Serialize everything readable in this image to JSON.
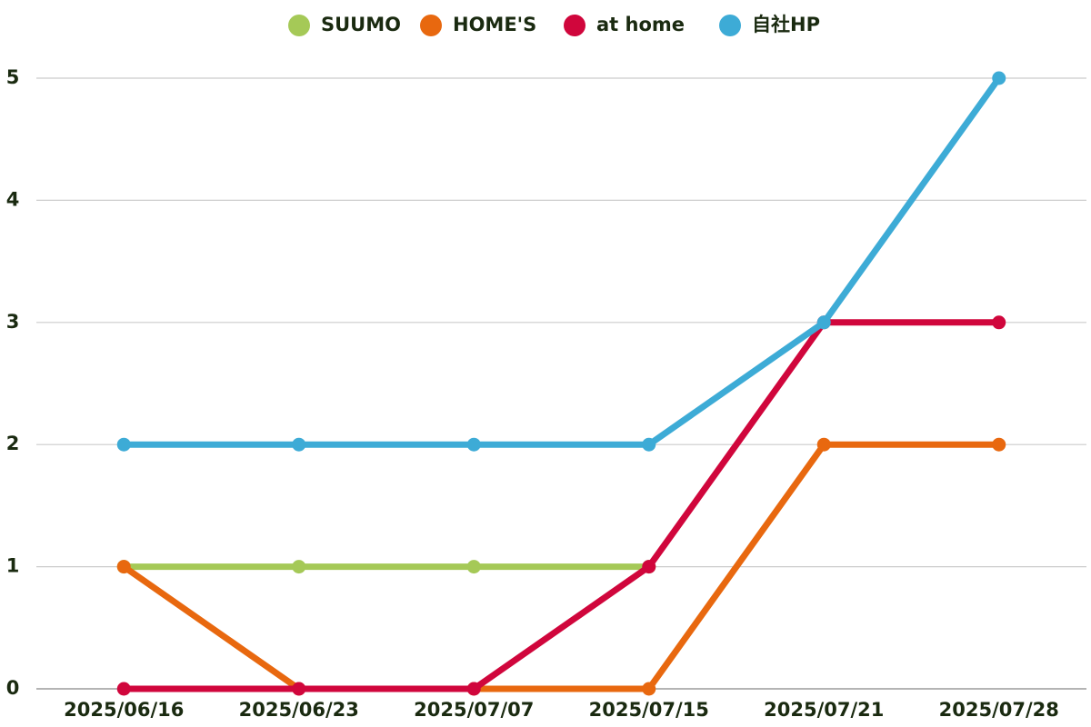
{
  "chart_data": {
    "type": "line",
    "categories": [
      "2025/06/16",
      "2025/06/23",
      "2025/07/07",
      "2025/07/15",
      "2025/07/21",
      "2025/07/28"
    ],
    "series": [
      {
        "name": "SUUMO",
        "color": "#a5c957",
        "values": [
          1,
          1,
          1,
          1,
          null,
          null
        ]
      },
      {
        "name": "HOME'S",
        "color": "#e8680f",
        "values": [
          1,
          0,
          0,
          0,
          2,
          2
        ]
      },
      {
        "name": "at home",
        "color": "#d0063c",
        "values": [
          0,
          0,
          0,
          1,
          3,
          3
        ]
      },
      {
        "name": "自社HP",
        "color": "#3dabd6",
        "values": [
          2,
          2,
          2,
          2,
          3,
          5
        ]
      }
    ],
    "ylim": [
      0,
      5
    ],
    "yticks": [
      0,
      1,
      2,
      3,
      4,
      5
    ],
    "grid": true,
    "legend": "top"
  }
}
